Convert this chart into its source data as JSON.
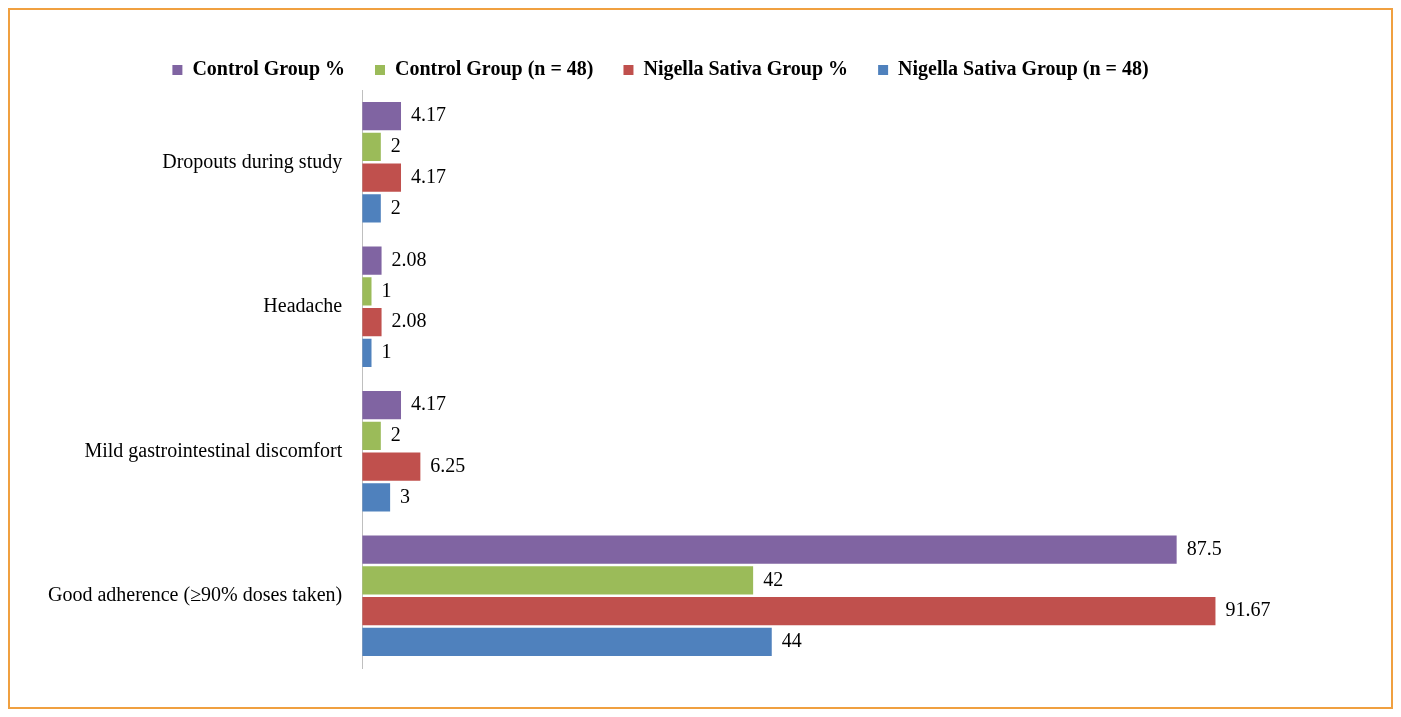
{
  "chart_data": {
    "type": "bar",
    "orientation": "horizontal",
    "categories": [
      "Dropouts during study",
      "Headache",
      "Mild gastrointestinal discomfort",
      "Good adherence (≥90% doses taken)"
    ],
    "series": [
      {
        "name": "Control Group %",
        "color": "#8064a2",
        "values": [
          4.17,
          2.08,
          4.17,
          87.5
        ]
      },
      {
        "name": "Control Group (n = 48)",
        "color": "#9bbb59",
        "values": [
          2,
          1,
          2,
          42
        ]
      },
      {
        "name": "Nigella Sativa Group %",
        "color": "#c0504d",
        "values": [
          4.17,
          2.08,
          6.25,
          91.67
        ]
      },
      {
        "name": "Nigella Sativa Group (n = 48)",
        "color": "#4f81bd",
        "values": [
          2,
          1,
          3,
          44
        ]
      }
    ],
    "data_labels": true,
    "legend": "top",
    "grid": false
  }
}
